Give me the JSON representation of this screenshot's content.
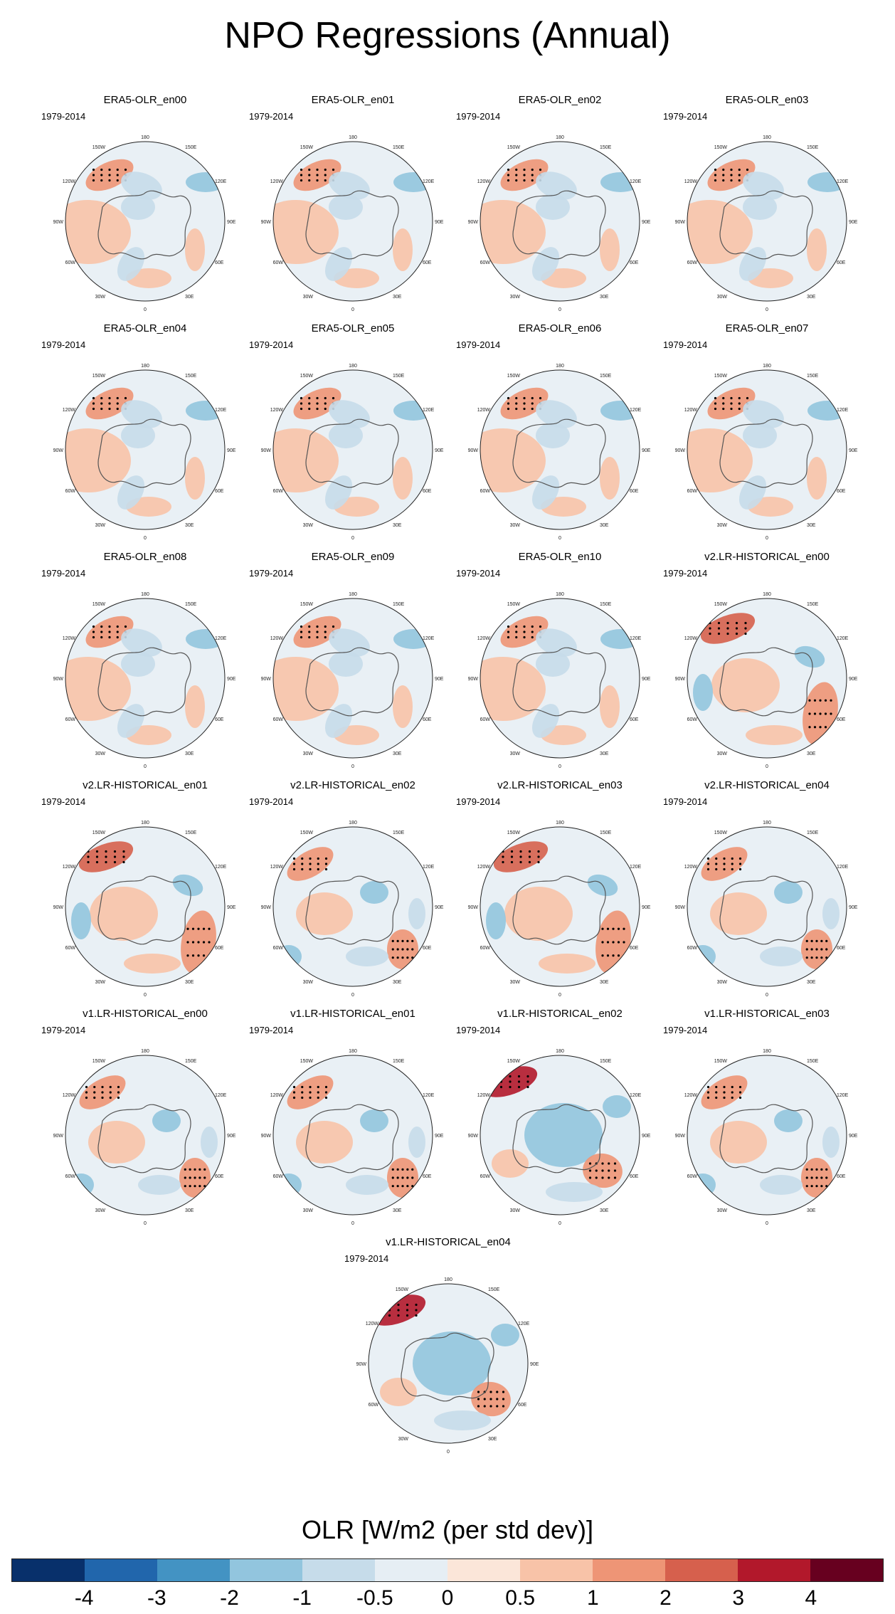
{
  "figure": {
    "title": "NPO Regressions (Annual)",
    "colorbar_label": "OLR [W/m2 (per std dev)]",
    "colorbar_ticks": [
      "-4",
      "-3",
      "-2",
      "-1",
      "-0.5",
      "0",
      "0.5",
      "1",
      "2",
      "3",
      "4"
    ],
    "colorbar_colors": [
      "#08306b",
      "#2166ac",
      "#4393c3",
      "#92c5de",
      "#c6dcea",
      "#e6eef4",
      "#fbe6d9",
      "#f8c3a8",
      "#ee9576",
      "#d6604d",
      "#b2182b",
      "#67001f"
    ]
  },
  "map_labels": {
    "top": "180",
    "bottom": "0",
    "upper_left": "150W",
    "upper_right": "150E",
    "left_upper": "120W",
    "right_upper": "120E",
    "left": "90W",
    "right": "90E",
    "left_lower": "60W",
    "right_lower": "60E",
    "lower_left": "30W",
    "lower_right": "30E"
  },
  "panels": [
    {
      "title": "ERA5-OLR_en00",
      "period": "1979-2014",
      "pattern": "obs"
    },
    {
      "title": "ERA5-OLR_en01",
      "period": "1979-2014",
      "pattern": "obs"
    },
    {
      "title": "ERA5-OLR_en02",
      "period": "1979-2014",
      "pattern": "obs"
    },
    {
      "title": "ERA5-OLR_en03",
      "period": "1979-2014",
      "pattern": "obs"
    },
    {
      "title": "ERA5-OLR_en04",
      "period": "1979-2014",
      "pattern": "obs"
    },
    {
      "title": "ERA5-OLR_en05",
      "period": "1979-2014",
      "pattern": "obs"
    },
    {
      "title": "ERA5-OLR_en06",
      "period": "1979-2014",
      "pattern": "obs"
    },
    {
      "title": "ERA5-OLR_en07",
      "period": "1979-2014",
      "pattern": "obs"
    },
    {
      "title": "ERA5-OLR_en08",
      "period": "1979-2014",
      "pattern": "obs"
    },
    {
      "title": "ERA5-OLR_en09",
      "period": "1979-2014",
      "pattern": "obs"
    },
    {
      "title": "ERA5-OLR_en10",
      "period": "1979-2014",
      "pattern": "obs"
    },
    {
      "title": "v2.LR-HISTORICAL_en00",
      "period": "1979-2014",
      "pattern": "model_warm"
    },
    {
      "title": "v2.LR-HISTORICAL_en01",
      "period": "1979-2014",
      "pattern": "model_warm"
    },
    {
      "title": "v2.LR-HISTORICAL_en02",
      "period": "1979-2014",
      "pattern": "model_mixed"
    },
    {
      "title": "v2.LR-HISTORICAL_en03",
      "period": "1979-2014",
      "pattern": "model_warm"
    },
    {
      "title": "v2.LR-HISTORICAL_en04",
      "period": "1979-2014",
      "pattern": "model_mixed"
    },
    {
      "title": "v1.LR-HISTORICAL_en00",
      "period": "1979-2014",
      "pattern": "model_mixed"
    },
    {
      "title": "v1.LR-HISTORICAL_en01",
      "period": "1979-2014",
      "pattern": "model_mixed"
    },
    {
      "title": "v1.LR-HISTORICAL_en02",
      "period": "1979-2014",
      "pattern": "model_cool"
    },
    {
      "title": "v1.LR-HISTORICAL_en03",
      "period": "1979-2014",
      "pattern": "model_mixed"
    },
    {
      "title": "v1.LR-HISTORICAL_en04",
      "period": "1979-2014",
      "pattern": "model_cool"
    }
  ]
}
